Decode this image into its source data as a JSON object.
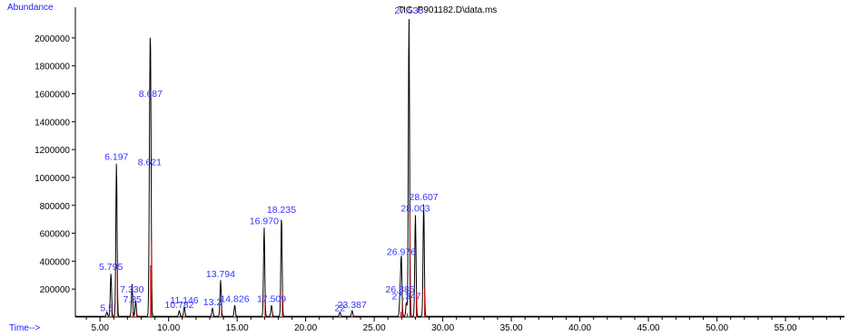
{
  "chart_data": {
    "type": "line",
    "title": "TIC: P901182.D\\data.ms",
    "ylabel": "Abundance",
    "xlabel": "Time-->",
    "xlim": [
      3.2,
      59.3
    ],
    "ylim": [
      0,
      2220000
    ],
    "xticks": [
      5.0,
      10.0,
      15.0,
      20.0,
      25.0,
      30.0,
      35.0,
      40.0,
      45.0,
      50.0,
      55.0
    ],
    "xtick_labels": [
      "5.00",
      "10.00",
      "15.00",
      "20.00",
      "25.00",
      "30.00",
      "35.00",
      "40.00",
      "45.00",
      "50.00",
      "55.00"
    ],
    "yticks": [
      200000,
      400000,
      600000,
      800000,
      1000000,
      1200000,
      1400000,
      1600000,
      1800000,
      2000000
    ],
    "ytick_labels": [
      "200000",
      "400000",
      "600000",
      "800000",
      "1000000",
      "1200000",
      "1400000",
      "1600000",
      "1800000",
      "2000000"
    ],
    "grid": false,
    "baseline": 5000,
    "peaks": [
      {
        "rt": 5.795,
        "label": "5.795",
        "height": 310000
      },
      {
        "rt": 6.197,
        "label": "6.197",
        "height": 1100000
      },
      {
        "rt": 7.33,
        "label": "7.330",
        "height": 150000
      },
      {
        "rt": 7.6,
        "label": "",
        "height": 110000
      },
      {
        "rt": 8.621,
        "label": "8.621",
        "height": 1060000
      },
      {
        "rt": 8.687,
        "label": "8.687",
        "height": 1550000
      },
      {
        "rt": 11.146,
        "label": "11.146",
        "height": 70000
      },
      {
        "rt": 10.782,
        "label": "10.782",
        "height": 40000
      },
      {
        "rt": 13.794,
        "label": "13.794",
        "height": 260000
      },
      {
        "rt": 13.2,
        "label": "13.2",
        "height": 60000
      },
      {
        "rt": 14.826,
        "label": "14.826",
        "height": 80000
      },
      {
        "rt": 16.97,
        "label": "16.970",
        "height": 640000
      },
      {
        "rt": 17.509,
        "label": "17.509",
        "height": 80000
      },
      {
        "rt": 18.235,
        "label": "18.235",
        "height": 720000
      },
      {
        "rt": 23.387,
        "label": "23.387",
        "height": 40000
      },
      {
        "rt": 26.976,
        "label": "26.976",
        "height": 420000
      },
      {
        "rt": 26.885,
        "label": "26.885",
        "height": 150000
      },
      {
        "rt": 27.347,
        "label": "27.347",
        "height": 100000
      },
      {
        "rt": 27.535,
        "label": "27.535",
        "height": 2150000
      },
      {
        "rt": 28.003,
        "label": "28.003",
        "height": 730000
      },
      {
        "rt": 28.607,
        "label": "28.607",
        "height": 810000
      }
    ],
    "extra_labels": [
      {
        "rt": 5.5,
        "label": "5.5",
        "height": 30000
      },
      {
        "rt": 7.35,
        "label": "7.35",
        "height": 90000
      },
      {
        "rt": 22.5,
        "label": "22",
        "height": 30000
      }
    ]
  }
}
